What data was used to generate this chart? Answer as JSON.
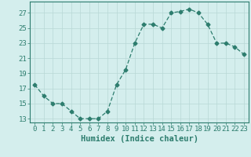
{
  "x": [
    0,
    1,
    2,
    3,
    4,
    5,
    6,
    7,
    8,
    9,
    10,
    11,
    12,
    13,
    14,
    15,
    16,
    17,
    18,
    19,
    20,
    21,
    22,
    23
  ],
  "y": [
    17.5,
    16.0,
    15.0,
    15.0,
    14.0,
    13.0,
    13.0,
    13.0,
    14.0,
    17.5,
    19.5,
    23.0,
    25.5,
    25.5,
    25.0,
    27.0,
    27.2,
    27.5,
    27.0,
    25.5,
    23.0,
    23.0,
    22.5,
    21.5
  ],
  "xlabel": "Humidex (Indice chaleur)",
  "xlim": [
    -0.5,
    23.5
  ],
  "ylim": [
    12.5,
    28.5
  ],
  "yticks": [
    13,
    15,
    17,
    19,
    21,
    23,
    25,
    27
  ],
  "xticks": [
    0,
    1,
    2,
    3,
    4,
    5,
    6,
    7,
    8,
    9,
    10,
    11,
    12,
    13,
    14,
    15,
    16,
    17,
    18,
    19,
    20,
    21,
    22,
    23
  ],
  "line_color": "#2d7d6e",
  "marker": "D",
  "marker_size": 2.5,
  "bg_color": "#d4eeed",
  "grid_color": "#b8d8d5",
  "tick_label_fontsize": 6.5,
  "xlabel_fontsize": 7.5
}
